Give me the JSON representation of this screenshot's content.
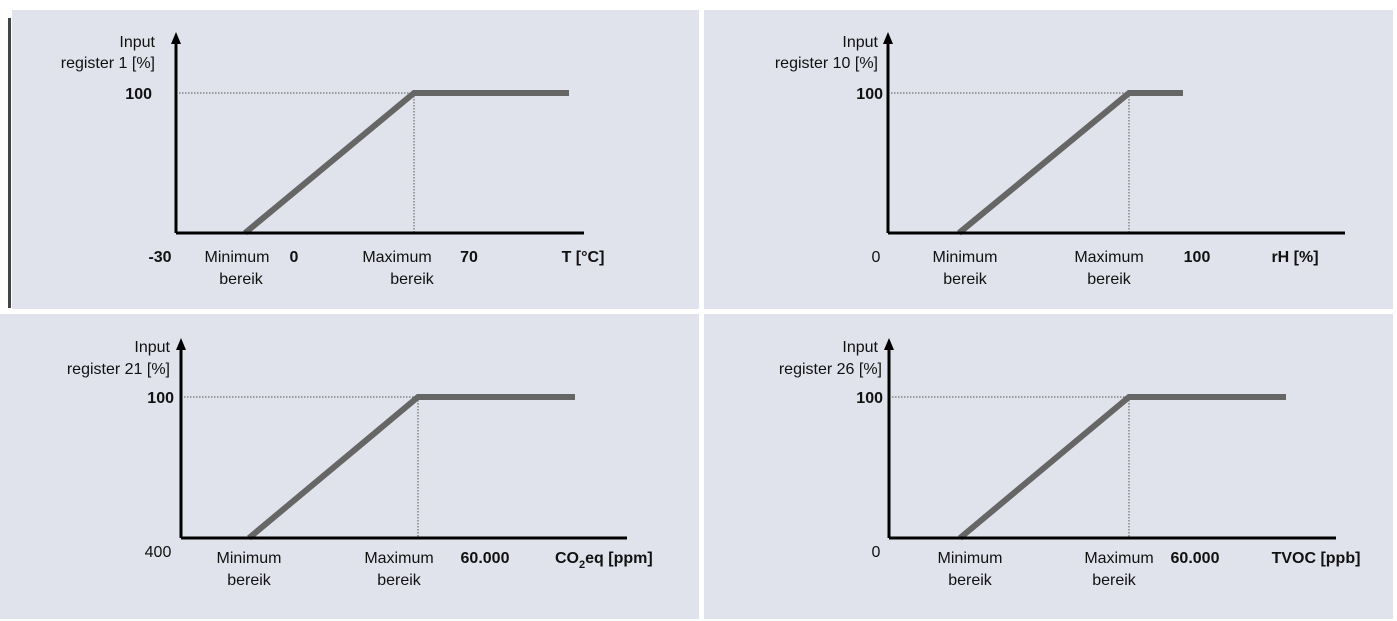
{
  "panels": [
    {
      "y_label_line1": "Input",
      "y_label_line2": "register 1 [%]",
      "y_top_value": "100",
      "x_origin_label": "-30",
      "x_origin_bold": true,
      "min_label_line1": "Minimum",
      "min_label_line2": "bereik",
      "min_value": "0",
      "max_label_line1": "Maximum",
      "max_label_line2": "bereik",
      "max_value": "70",
      "x_axis_label": "T [°C]"
    },
    {
      "y_label_line1": "Input",
      "y_label_line2": "register 10 [%]",
      "y_top_value": "100",
      "x_origin_label": "0",
      "x_origin_bold": false,
      "min_label_line1": "Minimum",
      "min_label_line2": "bereik",
      "min_value": "",
      "max_label_line1": "Maximum",
      "max_label_line2": "bereik",
      "max_value": "100",
      "x_axis_label": "rH [%]"
    },
    {
      "y_label_line1": "Input",
      "y_label_line2": "register 21  [%]",
      "y_top_value": "100",
      "x_origin_label": "400",
      "x_origin_bold": false,
      "min_label_line1": "Minimum",
      "min_label_line2": "bereik",
      "min_value": "",
      "max_label_line1": "Maximum",
      "max_label_line2": "bereik",
      "max_value": "60.000",
      "x_axis_label_main": "CO",
      "x_axis_label_sub": "2",
      "x_axis_label_tail": "eq [ppm]"
    },
    {
      "y_label_line1": "Input",
      "y_label_line2": "register 26  [%]",
      "y_top_value": "100",
      "x_origin_label": "0",
      "x_origin_bold": false,
      "min_label_line1": "Minimum",
      "min_label_line2": "bereik",
      "min_value": "",
      "max_label_line1": "Maximum",
      "max_label_line2": "bereik",
      "max_value": "60.000",
      "x_axis_label": "TVOC  [ppb]"
    }
  ],
  "colors": {
    "panel_bg": "#e1e3ec",
    "axis": "#000000",
    "curve": "#666666"
  }
}
